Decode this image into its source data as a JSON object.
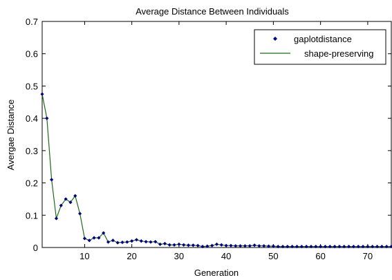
{
  "chart_data": {
    "type": "line",
    "title": "Average Distance Between Individuals",
    "xlabel": "Generation",
    "ylabel": "Avergae Distance",
    "xlim": [
      1,
      75
    ],
    "ylim": [
      0,
      0.7
    ],
    "xticks": [
      10,
      20,
      30,
      40,
      50,
      60,
      70
    ],
    "yticks": [
      0,
      0.1,
      0.2,
      0.3,
      0.4,
      0.5,
      0.6,
      0.7
    ],
    "xtick_labels": [
      "10",
      "20",
      "30",
      "40",
      "50",
      "60",
      "70"
    ],
    "ytick_labels": [
      "0",
      "0.1",
      "0.2",
      "0.3",
      "0.4",
      "0.5",
      "0.6",
      "0.7"
    ],
    "grid": false,
    "legend_position": "top-right",
    "series": [
      {
        "name": "gaplotdistance",
        "style": "markers",
        "color": "#000080",
        "x": [
          1,
          2,
          3,
          4,
          5,
          6,
          7,
          8,
          9,
          10,
          11,
          12,
          13,
          14,
          15,
          16,
          17,
          18,
          19,
          20,
          21,
          22,
          23,
          24,
          25,
          26,
          27,
          28,
          29,
          30,
          31,
          32,
          33,
          34,
          35,
          36,
          37,
          38,
          39,
          40,
          41,
          42,
          43,
          44,
          45,
          46,
          47,
          48,
          49,
          50,
          51,
          52,
          53,
          54,
          55,
          56,
          57,
          58,
          59,
          60,
          61,
          62,
          63,
          64,
          65,
          66,
          67,
          68,
          69,
          70,
          71,
          72,
          73,
          74,
          75
        ],
        "y": [
          0.475,
          0.4,
          0.21,
          0.09,
          0.13,
          0.15,
          0.14,
          0.16,
          0.105,
          0.028,
          0.022,
          0.03,
          0.03,
          0.045,
          0.017,
          0.022,
          0.015,
          0.016,
          0.017,
          0.02,
          0.024,
          0.02,
          0.018,
          0.017,
          0.018,
          0.01,
          0.012,
          0.008,
          0.008,
          0.01,
          0.008,
          0.007,
          0.007,
          0.006,
          0.003,
          0.004,
          0.006,
          0.01,
          0.008,
          0.006,
          0.006,
          0.005,
          0.005,
          0.005,
          0.005,
          0.007,
          0.005,
          0.005,
          0.004,
          0.004,
          0.003,
          0.003,
          0.003,
          0.003,
          0.003,
          0.003,
          0.003,
          0.003,
          0.003,
          0.003,
          0.003,
          0.003,
          0.003,
          0.003,
          0.003,
          0.003,
          0.003,
          0.003,
          0.003,
          0.003,
          0.003,
          0.003,
          0.003,
          0.003,
          0.003
        ]
      },
      {
        "name": "shape-preserving",
        "style": "line",
        "color": "#1a6b1a"
      }
    ]
  }
}
